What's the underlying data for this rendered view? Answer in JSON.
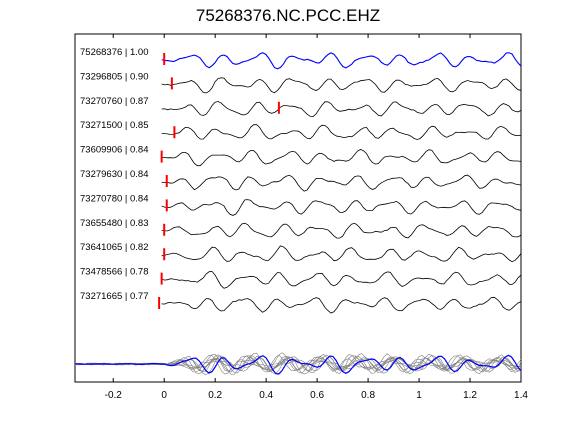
{
  "chart_data": {
    "type": "line",
    "title": "75268376.NC.PCC.EHZ",
    "xlabel": "",
    "ylabel": "",
    "xlim": [
      -0.35,
      1.4
    ],
    "xticks": [
      -0.2,
      0,
      0.2,
      0.4,
      0.6,
      0.8,
      1,
      1.2,
      1.4
    ],
    "xtick_labels": [
      "-0.2",
      "0",
      "0.2",
      "0.4",
      "0.6",
      "0.8",
      "1",
      "1.2",
      "1.4"
    ],
    "grid": false,
    "colors": {
      "reference_trace": "#0000ff",
      "trace": "#000000",
      "pick": "#ff0000",
      "stack": "#808080"
    },
    "traces": [
      {
        "label": "75268376 | 1.00",
        "pick": 0.0,
        "reference": true
      },
      {
        "label": "73296805 | 0.90",
        "pick": 0.03
      },
      {
        "label": "73270760 | 0.87",
        "pick": 0.45
      },
      {
        "label": "73271500 | 0.85",
        "pick": 0.04
      },
      {
        "label": "73609906 | 0.84",
        "pick": -0.01
      },
      {
        "label": "73279630 | 0.84",
        "pick": 0.01
      },
      {
        "label": "73270780 | 0.84",
        "pick": 0.01
      },
      {
        "label": "73655480 | 0.83",
        "pick": 0.0
      },
      {
        "label": "73641065 | 0.82",
        "pick": 0.0
      },
      {
        "label": "73478566 | 0.78",
        "pick": -0.01
      },
      {
        "label": "73271665 | 0.77",
        "pick": -0.02
      }
    ],
    "stack": {
      "description_visible": false
    }
  }
}
